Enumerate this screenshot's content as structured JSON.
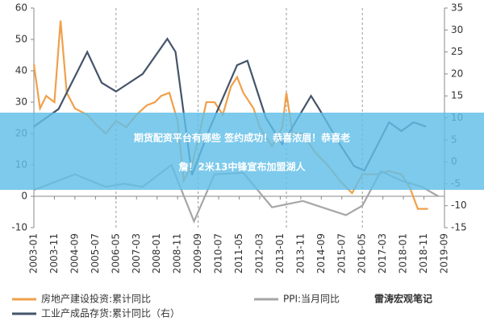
{
  "chart_data": {
    "type": "line",
    "xlim": [
      "2003-01",
      "2019-09"
    ],
    "xticks": [
      "2003-01",
      "2003-11",
      "2004-09",
      "2005-07",
      "2006-05",
      "2007-03",
      "2008-01",
      "2008-11",
      "2009-09",
      "2010-07",
      "2011-05",
      "2012-03",
      "2013-01",
      "2013-11",
      "2014-09",
      "2015-07",
      "2016-05",
      "2017-03",
      "2018-01",
      "2018-11",
      "2019-09"
    ],
    "ylim": [
      -10,
      60
    ],
    "yticks": [
      -10,
      0,
      10,
      20,
      30,
      40,
      50,
      60
    ],
    "y2lim": [
      -15,
      35
    ],
    "y2ticks": [
      -15,
      -10,
      -5,
      0,
      5,
      10,
      15,
      20,
      25,
      30,
      35
    ],
    "vlines": [
      "2006-05",
      "2009-09",
      "2013-04",
      "2016-05"
    ],
    "series": [
      {
        "name": "房地产建设投资:累计同比",
        "color": "#f0a04a",
        "x": [
          "2003-01",
          "2003-04",
          "2003-07",
          "2003-11",
          "2004-02",
          "2004-05",
          "2004-09",
          "2005-03",
          "2005-07",
          "2005-12",
          "2006-05",
          "2006-10",
          "2007-03",
          "2007-08",
          "2007-12",
          "2008-03",
          "2008-07",
          "2008-11",
          "2009-02",
          "2009-06",
          "2009-09",
          "2010-01",
          "2010-05",
          "2010-09",
          "2011-01",
          "2011-04",
          "2011-07",
          "2011-12",
          "2012-03",
          "2012-09",
          "2013-02",
          "2013-04",
          "2013-07",
          "2013-12",
          "2014-06",
          "2014-12",
          "2015-06",
          "2015-12",
          "2016-05",
          "2016-12",
          "2017-06",
          "2017-12",
          "2018-04",
          "2018-08",
          "2018-12",
          "2019-01"
        ],
        "values": [
          42,
          28,
          32,
          30,
          56,
          33,
          28,
          26,
          23,
          20,
          24,
          22,
          26,
          29,
          30,
          32,
          33,
          24,
          5,
          10,
          18,
          30,
          30,
          26,
          35,
          38,
          33,
          28,
          22,
          16,
          22,
          33,
          20,
          20,
          14,
          10,
          5,
          1,
          7,
          7,
          8,
          7,
          3,
          -4,
          -4,
          -4
        ]
      },
      {
        "name": "PPI:当月同比",
        "color": "#a6a6a6",
        "x": [
          "2003-01",
          "2004-09",
          "2005-12",
          "2006-09",
          "2007-06",
          "2008-08",
          "2009-07",
          "2010-05",
          "2011-07",
          "2012-09",
          "2013-12",
          "2015-09",
          "2016-05",
          "2017-02",
          "2017-12",
          "2018-10",
          "2019-06"
        ],
        "values": [
          2,
          7,
          3,
          4,
          3,
          10,
          -8,
          7,
          7.5,
          -3.5,
          -1.5,
          -6,
          -3,
          8,
          5,
          3,
          0
        ]
      },
      {
        "name": "工业产成品存货:累计同比（右）",
        "color": "#44546a",
        "axis": "y2",
        "x": [
          "2003-01",
          "2004-01",
          "2005-03",
          "2005-10",
          "2006-05",
          "2007-06",
          "2008-06",
          "2008-10",
          "2009-06",
          "2010-03",
          "2011-04",
          "2011-09",
          "2012-06",
          "2013-02",
          "2014-04",
          "2014-08",
          "2015-06",
          "2016-01",
          "2016-06",
          "2017-06",
          "2017-12",
          "2018-06",
          "2018-12"
        ],
        "values": [
          8,
          12,
          25,
          18,
          16,
          20,
          28,
          25,
          -3,
          8,
          22,
          23,
          10,
          4,
          15,
          12,
          4,
          -1,
          -2,
          9,
          7,
          9,
          8
        ]
      }
    ]
  },
  "banner": [
    "期货配资平台有哪些 签约成功！恭喜浓眉！恭喜老",
    "詹！2米13中锋宣布加盟湖人"
  ],
  "watermark": "雷涛宏观笔记"
}
